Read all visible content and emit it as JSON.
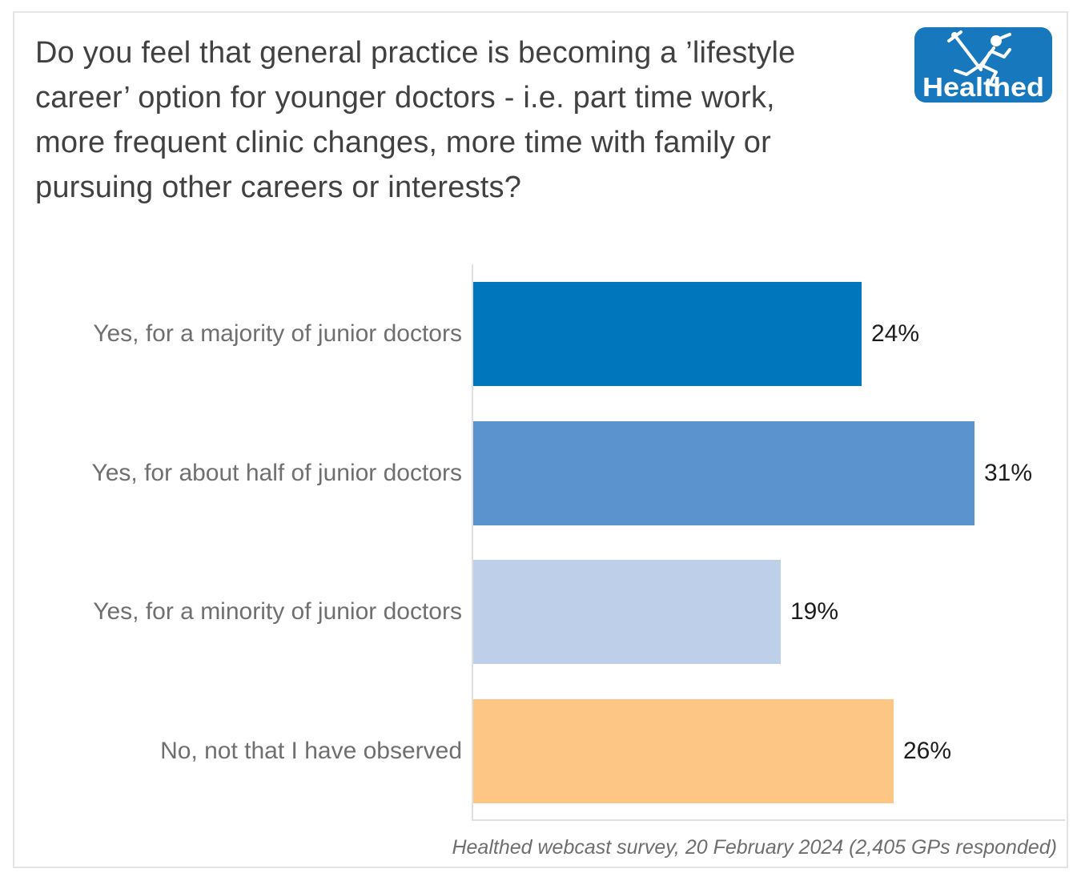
{
  "header": {
    "title": "Do you feel that general practice is becoming a ’lifestyle career’ option for younger doctors - i.e. part time work, more frequent clinic changes, more time with family or pursuing other careers or interests?",
    "logo": {
      "text": "Healthed",
      "bg_color": "#1878BE",
      "figure_color": "#ffffff"
    }
  },
  "chart_data": {
    "type": "bar",
    "orientation": "horizontal",
    "title": "Do you feel that general practice is becoming a ’lifestyle career’ option for younger doctors - i.e. part time work, more frequent clinic changes, more time with family or pursuing other careers or interests?",
    "categories": [
      "Yes, for a majority of junior doctors",
      "Yes, for about half of junior doctors",
      "Yes, for a minority of junior doctors",
      "No, not that I have observed"
    ],
    "values": [
      24,
      31,
      19,
      26
    ],
    "value_labels": [
      "24%",
      "31%",
      "19%",
      "26%"
    ],
    "bar_colors": [
      "#0076BD",
      "#5B93CE",
      "#BDCFE9",
      "#FDC685"
    ],
    "xlabel": "",
    "ylabel": "",
    "xlim": [
      0,
      37
    ],
    "grid": false,
    "legend": "none",
    "value_label_position": "outside-end",
    "category_label_color": "#6F6F6F",
    "value_label_color": "#1C1C1C",
    "axis_line_color": "#E0E0E0"
  },
  "footer": {
    "caption": "Healthed webcast survey, 20 February 2024 (2,405 GPs responded)"
  }
}
